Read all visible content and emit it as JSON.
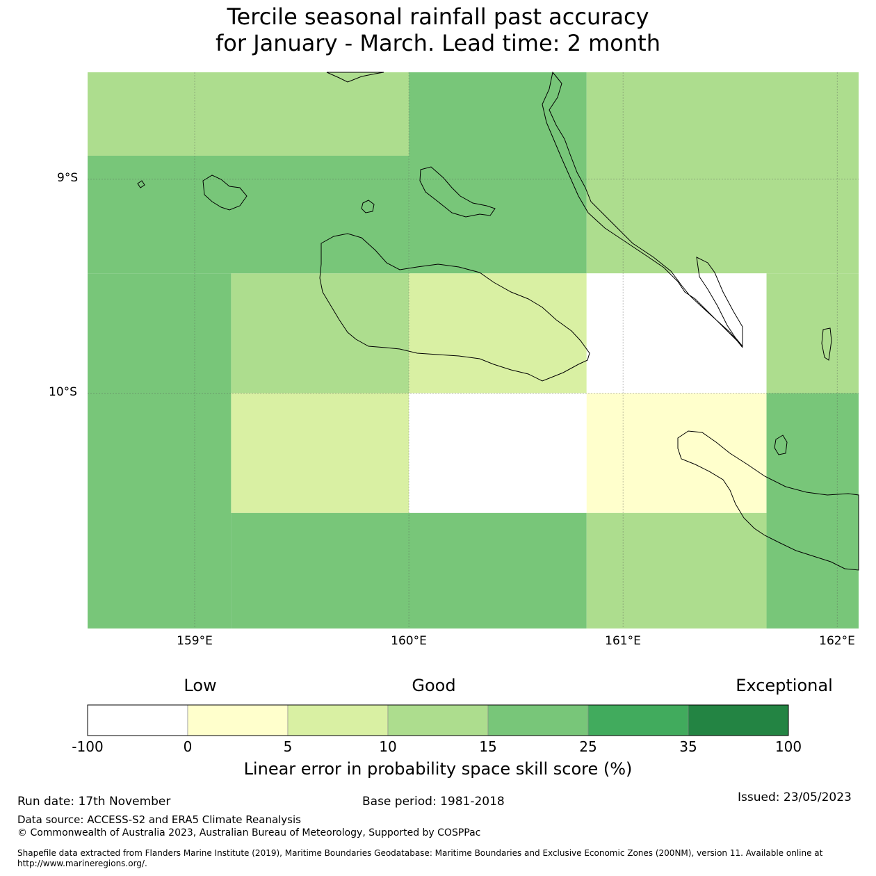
{
  "title": {
    "line1": "Tercile seasonal rainfall past accuracy",
    "line2": "for January - March. Lead time: 2 month"
  },
  "map": {
    "lat_labels": [
      "9°S",
      "10°S"
    ],
    "lon_labels": [
      "159°E",
      "160°E",
      "161°E",
      "162°E"
    ],
    "lon_range": [
      158.5,
      162.1
    ],
    "lat_range": [
      -8.5,
      -11.1
    ],
    "grid_lats": [
      -9,
      -10
    ],
    "grid_lons": [
      159,
      160,
      161,
      162
    ],
    "cells": [
      {
        "lon0": 158.5,
        "lon1": 160.0,
        "lat0": -8.5,
        "lat1": -8.89,
        "value": 12
      },
      {
        "lon0": 160.0,
        "lon1": 160.83,
        "lat0": -8.5,
        "lat1": -9.44,
        "value": 20
      },
      {
        "lon0": 160.83,
        "lon1": 162.1,
        "lat0": -8.5,
        "lat1": -9.44,
        "value": 12
      },
      {
        "lon0": 158.5,
        "lon1": 160.0,
        "lat0": -8.89,
        "lat1": -9.44,
        "value": 20
      },
      {
        "lon0": 158.5,
        "lon1": 159.17,
        "lat0": -9.44,
        "lat1": -11.1,
        "value": 20
      },
      {
        "lon0": 159.17,
        "lon1": 160.0,
        "lat0": -9.44,
        "lat1": -10.0,
        "value": 12
      },
      {
        "lon0": 160.0,
        "lon1": 160.83,
        "lat0": -9.44,
        "lat1": -10.0,
        "value": 7
      },
      {
        "lon0": 160.83,
        "lon1": 161.67,
        "lat0": -9.44,
        "lat1": -10.0,
        "value": -50
      },
      {
        "lon0": 161.67,
        "lon1": 162.1,
        "lat0": -9.44,
        "lat1": -10.0,
        "value": 12
      },
      {
        "lon0": 159.17,
        "lon1": 160.0,
        "lat0": -10.0,
        "lat1": -10.56,
        "value": 7
      },
      {
        "lon0": 160.0,
        "lon1": 160.83,
        "lat0": -10.0,
        "lat1": -10.56,
        "value": -50
      },
      {
        "lon0": 160.83,
        "lon1": 161.67,
        "lat0": -10.0,
        "lat1": -10.56,
        "value": 2
      },
      {
        "lon0": 161.67,
        "lon1": 162.1,
        "lat0": -10.0,
        "lat1": -11.1,
        "value": 20
      },
      {
        "lon0": 159.17,
        "lon1": 160.83,
        "lat0": -10.56,
        "lat1": -11.1,
        "value": 20
      },
      {
        "lon0": 160.83,
        "lon1": 161.67,
        "lat0": -10.56,
        "lat1": -11.1,
        "value": 12
      }
    ]
  },
  "legend": {
    "categories": [
      "Low",
      "Good",
      "Exceptional"
    ],
    "bins": [
      {
        "from": -100,
        "to": 0,
        "color": "#ffffff"
      },
      {
        "from": 0,
        "to": 5,
        "color": "#ffffcc"
      },
      {
        "from": 5,
        "to": 10,
        "color": "#d9f0a3"
      },
      {
        "from": 10,
        "to": 15,
        "color": "#addd8e"
      },
      {
        "from": 15,
        "to": 25,
        "color": "#78c679"
      },
      {
        "from": 25,
        "to": 35,
        "color": "#41ab5d"
      },
      {
        "from": 35,
        "to": 100,
        "color": "#238443"
      }
    ],
    "tick_labels": [
      "-100",
      "0",
      "5",
      "10",
      "15",
      "25",
      "35",
      "100"
    ],
    "title": "Linear error in probability space skill score (%)"
  },
  "footer": {
    "run_date": "Run date: 17th November",
    "base_period": "Base period: 1981-2018",
    "issued": "Issued: 23/05/2023",
    "data_source": "Data source: ACCESS-S2 and ERA5 Climate Reanalysis",
    "copyright": "© Commonwealth of Australia 2023, Australian Bureau of Meteorology, Supported by COSPPac",
    "shapefile": "Shapefile data extracted from Flanders Marine Institute (2019), Maritime Boundaries Geodatabase: Maritime Boundaries and Exclusive Economic Zones (200NM), version 11. Available online at http://www.marineregions.org/."
  }
}
